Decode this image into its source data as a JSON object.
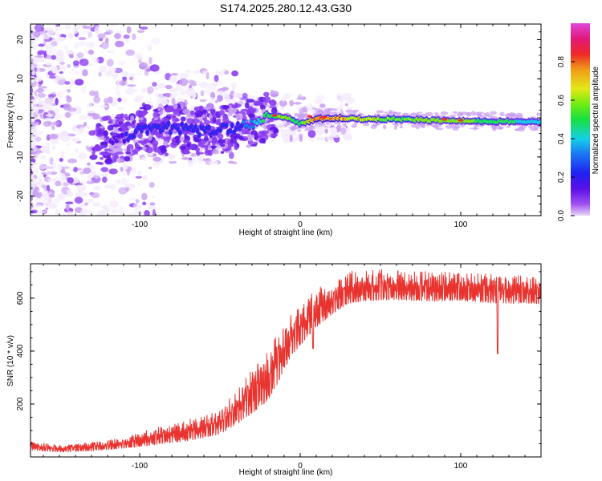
{
  "title": "S174.2025.280.12.43.G30",
  "colors": {
    "snr_line": "#e8332f",
    "frame": "#000000",
    "background": "#ffffff",
    "spectrogram_palette": [
      "#f4ecfc",
      "#c9a0f2",
      "#8a3cf0",
      "#5a12e6",
      "#2a2aef",
      "#1b7cf2",
      "#16d2e6",
      "#1ae85a",
      "#7fee14",
      "#e8e81a",
      "#f0a018",
      "#ef2b2b",
      "#e21a6f",
      "#e040d8"
    ]
  },
  "chart_data": [
    {
      "type": "heatmap",
      "title": "",
      "xlabel": "Height of straight line (km)",
      "ylabel": "Frequency (Hz)",
      "xlim": [
        -168,
        150
      ],
      "ylim": [
        -25,
        24
      ],
      "x_ticks": [
        -100,
        0,
        100
      ],
      "x_tick_labels": [
        "-100",
        "0",
        "100"
      ],
      "y_ticks": [
        -20,
        -10,
        0,
        10,
        20
      ],
      "y_tick_labels": [
        "-20",
        "-10",
        "0",
        "10",
        "20"
      ],
      "colorbar": {
        "label": "Normalized spectral amplitude",
        "range": [
          0,
          1
        ],
        "ticks": [
          0.0,
          0.2,
          0.4,
          0.6,
          0.8
        ],
        "tick_labels": [
          "0.0",
          "0.2",
          "0.4",
          "0.6",
          "0.8"
        ]
      },
      "ridge": {
        "description_points_x_km": [
          -115,
          -100,
          -80,
          -60,
          -40,
          -30,
          -20,
          -10,
          0,
          10,
          20,
          40,
          60,
          80,
          100,
          120,
          150
        ],
        "frequency_hz": [
          -6,
          -3.5,
          -2.5,
          -3.5,
          -2.5,
          -1.5,
          0.5,
          0.3,
          -1.5,
          -0.3,
          0,
          -0.3,
          -0.3,
          -0.6,
          -0.8,
          -0.9,
          -1.0
        ],
        "amplitude": [
          0.25,
          0.3,
          0.3,
          0.3,
          0.3,
          0.4,
          0.55,
          0.6,
          0.55,
          0.75,
          0.7,
          0.6,
          0.55,
          0.6,
          0.6,
          0.55,
          0.45
        ]
      }
    },
    {
      "type": "line",
      "title": "",
      "xlabel": "Height of straight line (km)",
      "ylabel": "SNR (10 * v/v)",
      "xlim": [
        -168,
        150
      ],
      "ylim": [
        0,
        730
      ],
      "x_ticks": [
        -100,
        0,
        100
      ],
      "x_tick_labels": [
        "-100",
        "0",
        "100"
      ],
      "y_ticks": [
        200,
        400,
        600
      ],
      "y_tick_labels": [
        "200",
        "400",
        "600"
      ],
      "series": [
        {
          "name": "SNR",
          "envelope_x_km": [
            -168,
            -150,
            -130,
            -110,
            -90,
            -70,
            -50,
            -40,
            -30,
            -20,
            -15,
            -10,
            -5,
            0,
            5,
            10,
            15,
            20,
            25,
            30,
            40,
            60,
            80,
            100,
            120,
            150
          ],
          "envelope_baseline": [
            15,
            10,
            12,
            18,
            25,
            35,
            55,
            80,
            110,
            150,
            200,
            270,
            330,
            370,
            410,
            440,
            470,
            500,
            520,
            540,
            550,
            555,
            550,
            555,
            545,
            545
          ],
          "envelope_peak": [
            60,
            45,
            55,
            75,
            110,
            140,
            180,
            250,
            330,
            400,
            460,
            500,
            560,
            570,
            600,
            640,
            650,
            660,
            680,
            700,
            710,
            710,
            700,
            700,
            690,
            680
          ],
          "notable_dips": [
            {
              "x": 123,
              "y": 390
            },
            {
              "x": 8,
              "y": 410
            }
          ]
        }
      ]
    }
  ]
}
